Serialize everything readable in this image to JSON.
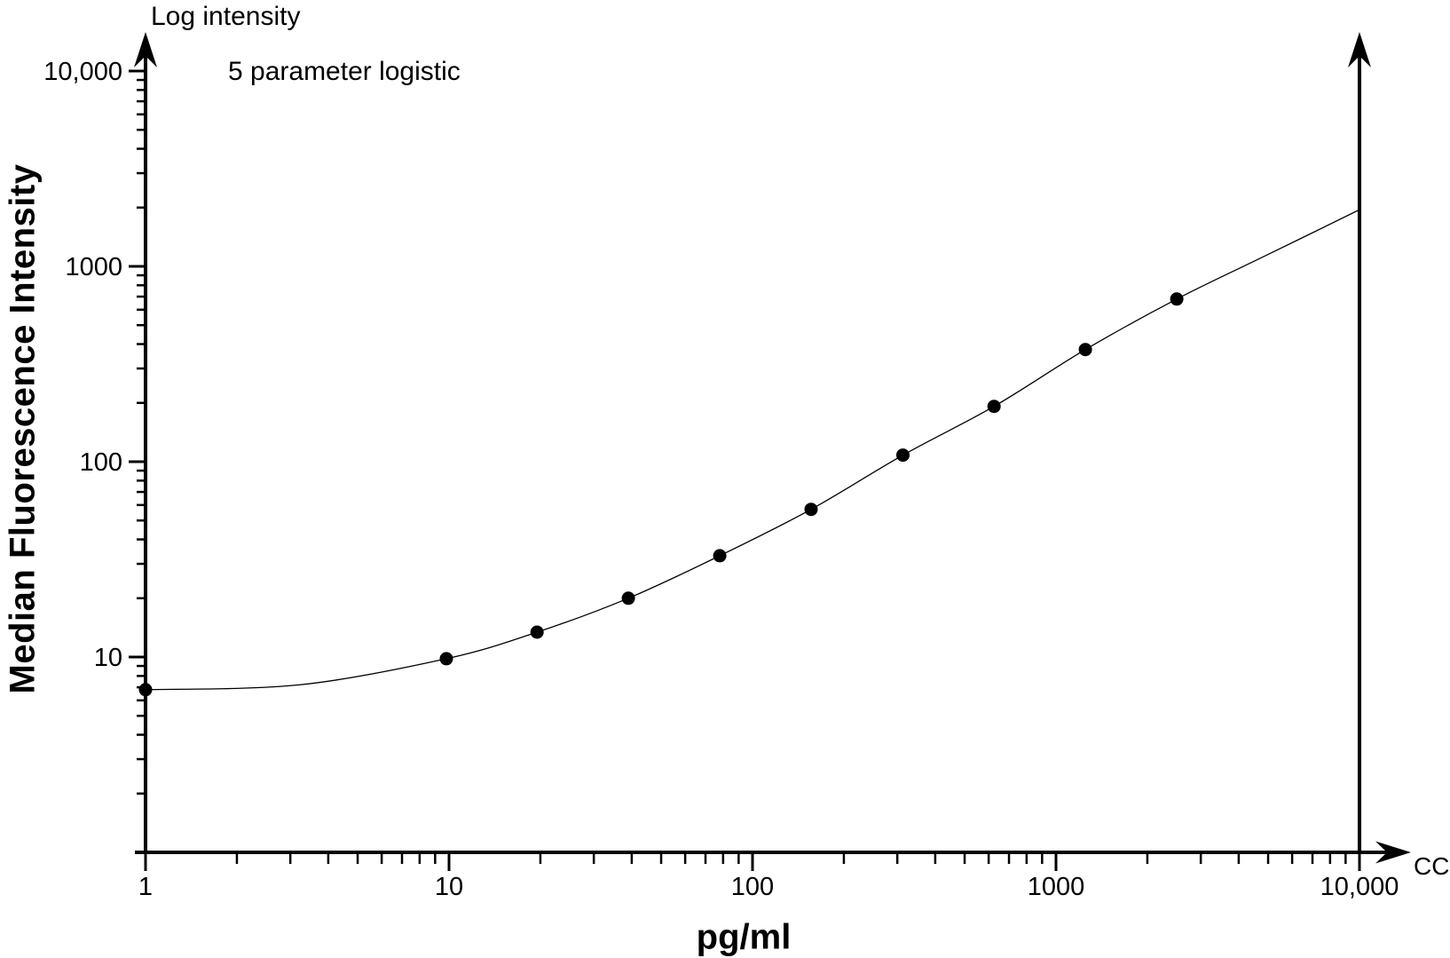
{
  "figure": {
    "background_color": "#ffffff",
    "ink_color": "#000000"
  },
  "chart_data": {
    "type": "scatter",
    "title": "Log intensity",
    "annotation": "5 parameter logistic",
    "xlabel": "pg/ml",
    "ylabel": "Median Fluorescence Intensity",
    "x_axis_end_label": "CC",
    "x_scale": "log",
    "y_scale": "log",
    "xlim": [
      1,
      10000
    ],
    "ylim": [
      1,
      10000
    ],
    "grid": "off",
    "x_ticks": [
      {
        "value": 1,
        "label": "1"
      },
      {
        "value": 10,
        "label": "10"
      },
      {
        "value": 100,
        "label": "100"
      },
      {
        "value": 1000,
        "label": "1000"
      },
      {
        "value": 10000,
        "label": "10,000"
      }
    ],
    "y_ticks": [
      {
        "value": 10,
        "label": "10"
      },
      {
        "value": 100,
        "label": "100"
      },
      {
        "value": 1000,
        "label": "1000"
      },
      {
        "value": 10000,
        "label": "10,000"
      }
    ],
    "points": [
      {
        "x": 1,
        "y": 6.8
      },
      {
        "x": 9.8,
        "y": 9.8
      },
      {
        "x": 19.5,
        "y": 13.4
      },
      {
        "x": 39,
        "y": 20
      },
      {
        "x": 78,
        "y": 33
      },
      {
        "x": 156,
        "y": 57
      },
      {
        "x": 313,
        "y": 108
      },
      {
        "x": 625,
        "y": 192
      },
      {
        "x": 1250,
        "y": 375
      },
      {
        "x": 2500,
        "y": 680
      }
    ],
    "curve": [
      {
        "x": 1,
        "y": 6.8
      },
      {
        "x": 3.2,
        "y": 7.2
      },
      {
        "x": 9.8,
        "y": 9.8
      },
      {
        "x": 19.5,
        "y": 13.4
      },
      {
        "x": 39,
        "y": 20
      },
      {
        "x": 78,
        "y": 33
      },
      {
        "x": 156,
        "y": 57
      },
      {
        "x": 313,
        "y": 108
      },
      {
        "x": 625,
        "y": 192
      },
      {
        "x": 1250,
        "y": 375
      },
      {
        "x": 2500,
        "y": 680
      },
      {
        "x": 5000,
        "y": 1150
      },
      {
        "x": 10000,
        "y": 1950
      }
    ]
  }
}
